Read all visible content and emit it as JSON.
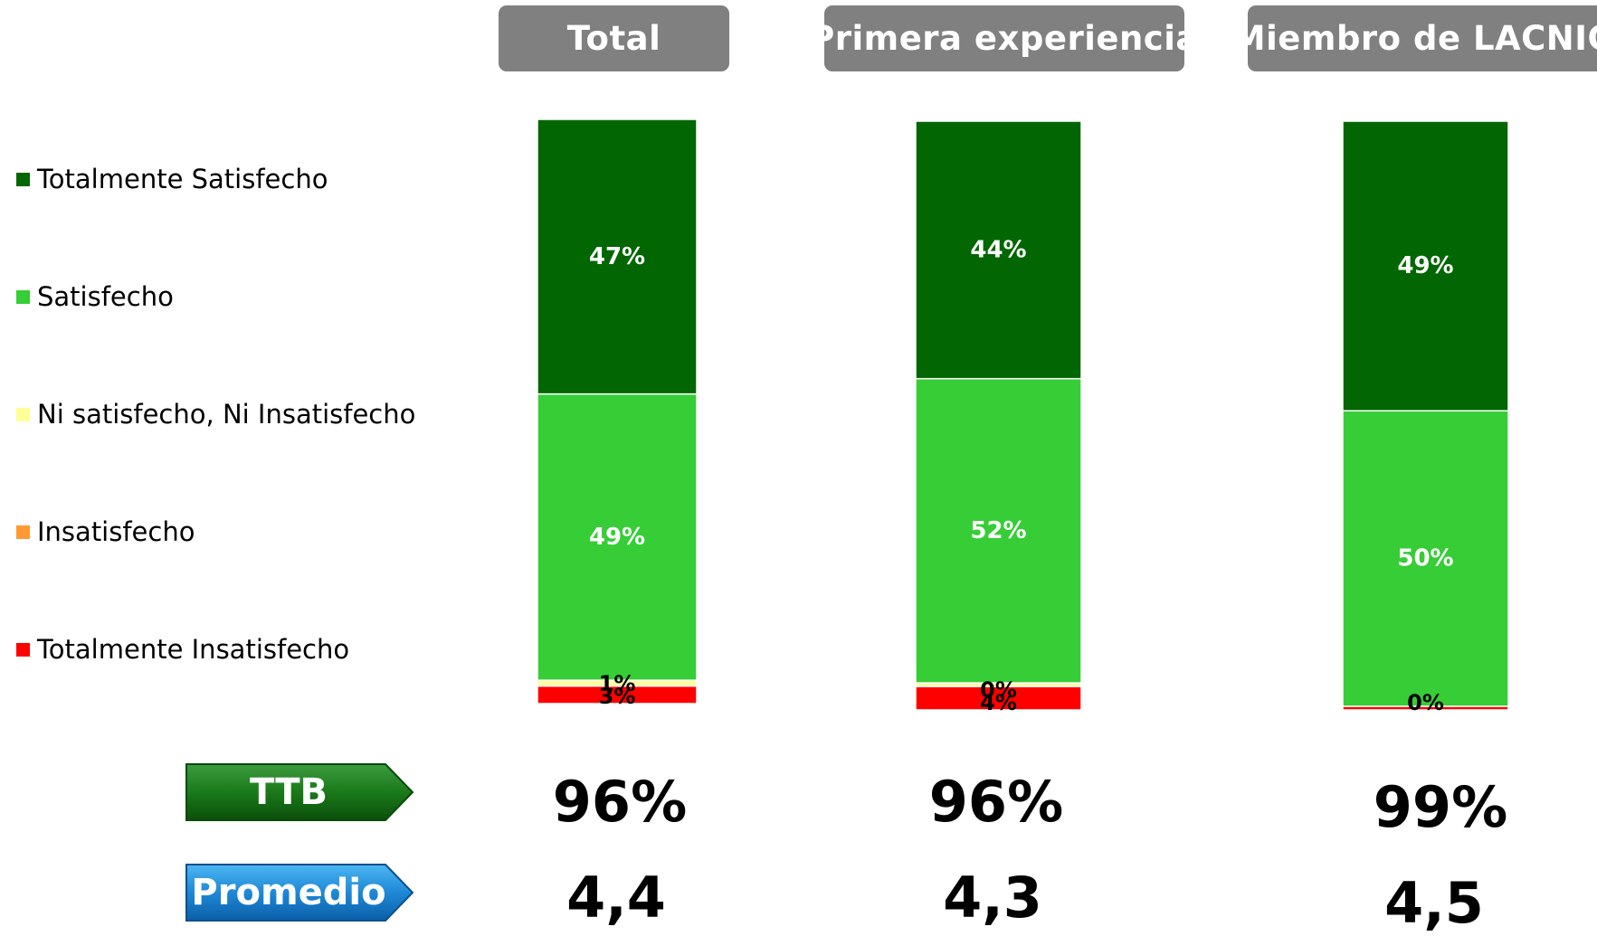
{
  "headers": [
    "Total",
    "Primera experiencia",
    "Miembro de LACNIC"
  ],
  "legend": [
    {
      "label": "Totalmente Satisfecho",
      "color": "#026602"
    },
    {
      "label": "Satisfecho",
      "color": "#36cd36"
    },
    {
      "label": "Ni satisfecho, Ni Insatisfecho",
      "color": "#ffff99"
    },
    {
      "label": "Insatisfecho",
      "color": "#ff9933"
    },
    {
      "label": "Totalmente Insatisfecho",
      "color": "#ff0000"
    }
  ],
  "chart_data": {
    "type": "bar",
    "stacked": true,
    "normalized": true,
    "categories": [
      "Total",
      "Primera experiencia",
      "Miembro de LACNIC"
    ],
    "series": [
      {
        "name": "Totalmente Insatisfecho",
        "color": "#ff0000",
        "values": [
          3,
          4,
          0
        ],
        "labels": [
          "3%",
          "4%",
          "0%"
        ]
      },
      {
        "name": "Insatisfecho",
        "color": "#ff9933",
        "values": [
          0,
          0,
          0
        ],
        "labels": [
          "",
          "",
          ""
        ]
      },
      {
        "name": "Ni satisfecho, Ni Insatisfecho",
        "color": "#ffff99",
        "values": [
          1,
          0,
          0
        ],
        "labels": [
          "1%",
          "0%",
          ""
        ]
      },
      {
        "name": "Satisfecho",
        "color": "#36cd36",
        "values": [
          49,
          52,
          50
        ],
        "labels": [
          "49%",
          "52%",
          "50%"
        ]
      },
      {
        "name": "Totalmente Satisfecho",
        "color": "#026602",
        "values": [
          47,
          44,
          49
        ],
        "labels": [
          "47%",
          "44%",
          "49%"
        ]
      }
    ]
  },
  "ttb": {
    "label": "TTB",
    "values": [
      "96%",
      "96%",
      "99%"
    ]
  },
  "promedio": {
    "label": "Promedio",
    "values": [
      "4,4",
      "4,3",
      "4,5"
    ]
  }
}
